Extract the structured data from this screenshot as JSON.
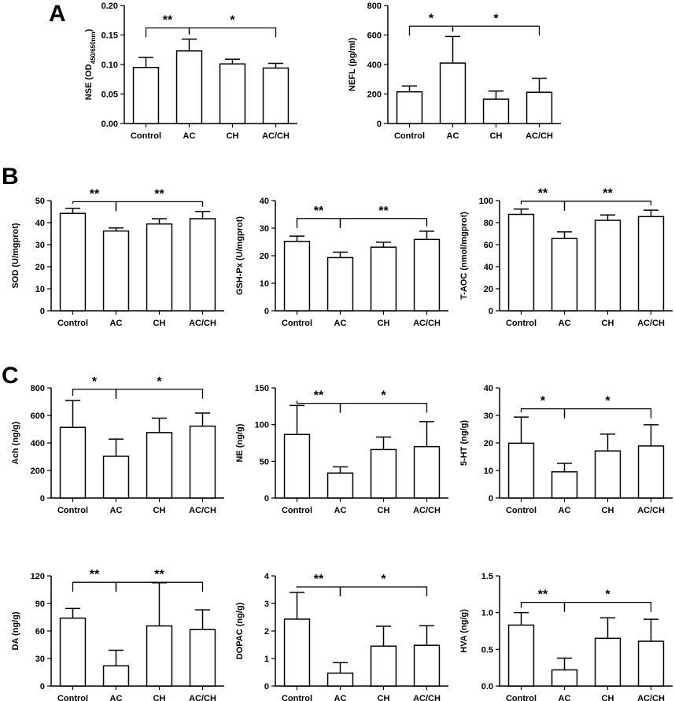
{
  "panels": [
    {
      "letter": "A"
    },
    {
      "letter": "B"
    },
    {
      "letter": "C"
    }
  ],
  "chart_data": [
    {
      "type": "bar",
      "panel": "A",
      "ylabel": "NSE (OD450/650nm)",
      "ylabel_main": "NSE (OD",
      "ylabel_sub": "450/650nm",
      "ylabel_end": ")",
      "categories": [
        "Control",
        "AC",
        "CH",
        "AC/CH"
      ],
      "values": [
        0.095,
        0.123,
        0.101,
        0.094
      ],
      "errors": [
        0.017,
        0.02,
        0.008,
        0.008
      ],
      "ylim": [
        0,
        0.2
      ],
      "yticks": [
        "0.00",
        "0.05",
        "0.10",
        "0.15",
        "0.20"
      ],
      "sig": [
        {
          "label": "**",
          "from": 0,
          "to": 1,
          "y": 0.162
        },
        {
          "label": "*",
          "from": 1,
          "to": 3,
          "y": 0.162
        }
      ]
    },
    {
      "type": "bar",
      "panel": "A",
      "ylabel": "NEFL (pg/ml)",
      "categories": [
        "Control",
        "AC",
        "CH",
        "AC/CH"
      ],
      "values": [
        215,
        410,
        165,
        212
      ],
      "errors": [
        40,
        180,
        55,
        95
      ],
      "ylim": [
        0,
        800
      ],
      "yticks": [
        "0",
        "200",
        "400",
        "600",
        "800"
      ],
      "sig": [
        {
          "label": "*",
          "from": 0,
          "to": 1,
          "y": 660
        },
        {
          "label": "*",
          "from": 1,
          "to": 3,
          "y": 660
        }
      ]
    },
    {
      "type": "bar",
      "panel": "B",
      "ylabel": "SOD (U/mgprot)",
      "categories": [
        "Control",
        "AC",
        "CH",
        "AC/CH"
      ],
      "values": [
        44.2,
        36.2,
        39.4,
        41.8
      ],
      "errors": [
        2.3,
        1.4,
        2.4,
        3.3
      ],
      "ylim": [
        0,
        50
      ],
      "yticks": [
        "0",
        "10",
        "20",
        "30",
        "40",
        "50"
      ],
      "sig": [
        {
          "label": "**",
          "from": 0,
          "to": 1,
          "y": 49.5
        },
        {
          "label": "**",
          "from": 1,
          "to": 3,
          "y": 49.5
        }
      ]
    },
    {
      "type": "bar",
      "panel": "B",
      "ylabel": "GSH-Px (U/mgprot)",
      "categories": [
        "Control",
        "AC",
        "CH",
        "AC/CH"
      ],
      "values": [
        25.2,
        19.3,
        23.1,
        25.9
      ],
      "errors": [
        1.9,
        2.0,
        1.8,
        3.0
      ],
      "ylim": [
        0,
        40
      ],
      "yticks": [
        "0",
        "10",
        "20",
        "30",
        "40"
      ],
      "sig": [
        {
          "label": "**",
          "from": 0,
          "to": 1,
          "y": 33.5
        },
        {
          "label": "**",
          "from": 1,
          "to": 3,
          "y": 33.5
        }
      ]
    },
    {
      "type": "bar",
      "panel": "B",
      "ylabel": "T-AOC (nmol/mgprot)",
      "categories": [
        "Control",
        "AC",
        "CH",
        "AC/CH"
      ],
      "values": [
        87.5,
        65.6,
        82.1,
        85.5
      ],
      "errors": [
        4.8,
        6.0,
        4.9,
        5.8
      ],
      "ylim": [
        0,
        100
      ],
      "yticks": [
        "0",
        "20",
        "40",
        "60",
        "80",
        "100"
      ],
      "sig": [
        {
          "label": "**",
          "from": 0,
          "to": 1,
          "y": 99.5
        },
        {
          "label": "**",
          "from": 1,
          "to": 3,
          "y": 99.5
        }
      ]
    },
    {
      "type": "bar",
      "panel": "C",
      "ylabel": "Ach (ng/g)",
      "categories": [
        "Control",
        "AC",
        "CH",
        "AC/CH"
      ],
      "values": [
        513,
        303,
        475,
        522
      ],
      "errors": [
        195,
        125,
        105,
        95
      ],
      "ylim": [
        0,
        800
      ],
      "yticks": [
        "0",
        "200",
        "400",
        "600",
        "800"
      ],
      "sig": [
        {
          "label": "*",
          "from": 0,
          "to": 1,
          "y": 790
        },
        {
          "label": "*",
          "from": 1,
          "to": 3,
          "y": 790
        }
      ]
    },
    {
      "type": "bar",
      "panel": "C",
      "ylabel": "NE (ng/g)",
      "categories": [
        "Control",
        "AC",
        "CH",
        "AC/CH"
      ],
      "values": [
        86.5,
        34.0,
        66.0,
        70.0
      ],
      "errors": [
        39.5,
        8.5,
        17.0,
        34.0
      ],
      "ylim": [
        0,
        150
      ],
      "yticks": [
        "0",
        "50",
        "100",
        "150"
      ],
      "sig": [
        {
          "label": "**",
          "from": 0,
          "to": 1,
          "y": 129
        },
        {
          "label": "*",
          "from": 1,
          "to": 3,
          "y": 129
        }
      ]
    },
    {
      "type": "bar",
      "panel": "C",
      "ylabel": "5-HT (ng/g)",
      "categories": [
        "Control",
        "AC",
        "CH",
        "AC/CH"
      ],
      "values": [
        19.9,
        9.5,
        17.1,
        18.9
      ],
      "errors": [
        9.5,
        3.1,
        6.1,
        7.7
      ],
      "ylim": [
        0,
        40
      ],
      "yticks": [
        "0",
        "10",
        "20",
        "30",
        "40"
      ],
      "sig": [
        {
          "label": "*",
          "from": 0,
          "to": 1,
          "y": 32.4
        },
        {
          "label": "*",
          "from": 1,
          "to": 3,
          "y": 32.4
        }
      ]
    },
    {
      "type": "bar",
      "panel": "C",
      "ylabel": "DA (ng/g)",
      "categories": [
        "Control",
        "AC",
        "CH",
        "AC/CH"
      ],
      "values": [
        74,
        22,
        65.5,
        61.5
      ],
      "errors": [
        10.5,
        17,
        47,
        21.5
      ],
      "ylim": [
        0,
        120
      ],
      "yticks": [
        "0",
        "30",
        "60",
        "90",
        "120"
      ],
      "sig": [
        {
          "label": "**",
          "from": 0,
          "to": 1,
          "y": 113
        },
        {
          "label": "**",
          "from": 1,
          "to": 3,
          "y": 113
        }
      ]
    },
    {
      "type": "bar",
      "panel": "C",
      "ylabel": "DOPAC (ng/g)",
      "categories": [
        "Control",
        "AC",
        "CH",
        "AC/CH"
      ],
      "values": [
        2.43,
        0.47,
        1.45,
        1.48
      ],
      "errors": [
        0.97,
        0.38,
        0.72,
        0.71
      ],
      "ylim": [
        0,
        4
      ],
      "yticks": [
        "0",
        "1",
        "2",
        "3",
        "4"
      ],
      "sig": [
        {
          "label": "**",
          "from": 0,
          "to": 1,
          "y": 3.6
        },
        {
          "label": "*",
          "from": 1,
          "to": 3,
          "y": 3.6
        }
      ]
    },
    {
      "type": "bar",
      "panel": "C",
      "ylabel": "HVA (ng/g)",
      "categories": [
        "Control",
        "AC",
        "CH",
        "AC/CH"
      ],
      "values": [
        0.83,
        0.22,
        0.65,
        0.61
      ],
      "errors": [
        0.17,
        0.16,
        0.28,
        0.3
      ],
      "ylim": [
        0,
        1.5
      ],
      "yticks": [
        "0.0",
        "0.5",
        "1.0",
        "1.5"
      ],
      "sig": [
        {
          "label": "**",
          "from": 0,
          "to": 1,
          "y": 1.14
        },
        {
          "label": "*",
          "from": 1,
          "to": 3,
          "y": 1.14
        }
      ]
    }
  ]
}
